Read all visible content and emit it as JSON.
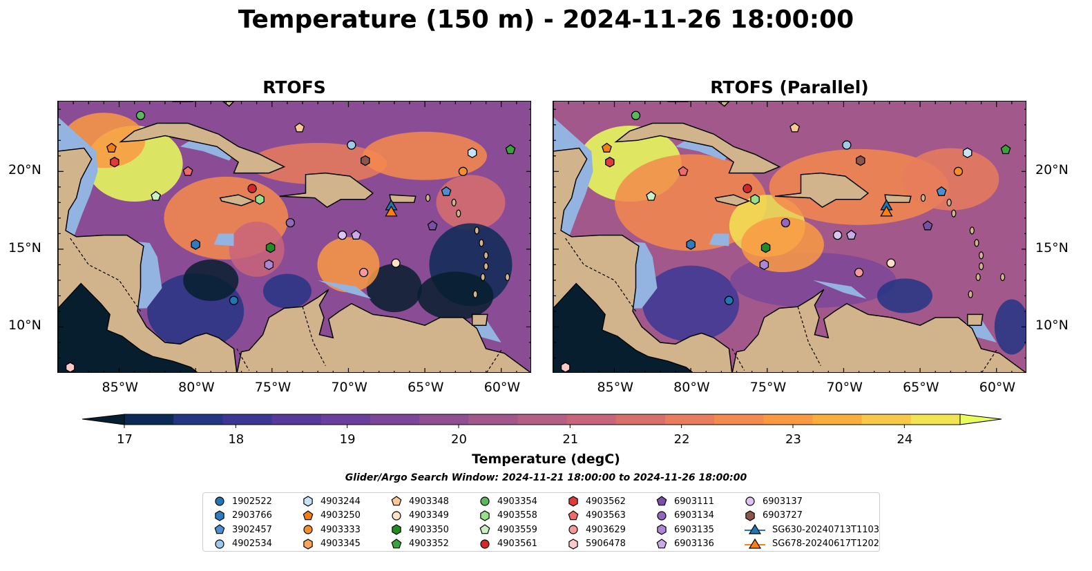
{
  "figure": {
    "title": "Temperature (150 m) - 2024-11-26 18:00:00"
  },
  "panels": [
    {
      "title": "RTOFS"
    },
    {
      "title": "RTOFS (Parallel)"
    }
  ],
  "map": {
    "lon_ticks": [
      "85°W",
      "80°W",
      "75°W",
      "70°W",
      "65°W",
      "60°W"
    ],
    "lat_ticks": [
      "20°N",
      "15°N",
      "10°N"
    ],
    "lon_range": [
      -89,
      -58
    ],
    "lat_range": [
      7,
      24.5
    ]
  },
  "colorbar": {
    "label": "Temperature (degC)",
    "ticks": [
      "17",
      "18",
      "19",
      "20",
      "21",
      "22",
      "23",
      "24"
    ],
    "range": [
      17,
      24.5
    ],
    "extend": "both",
    "colors": [
      "#071e2e",
      "#0c2a56",
      "#243584",
      "#3c3795",
      "#55399b",
      "#6a3f9d",
      "#7d4799",
      "#904f93",
      "#a3588b",
      "#b65f84",
      "#c8657a",
      "#d86f6c",
      "#e87c5c",
      "#f48a4c",
      "#f99a43",
      "#fbae3e",
      "#f8c947",
      "#f2e352",
      "#eaff5b"
    ]
  },
  "search_window": "Glider/Argo Search Window: 2024-11-21 18:00:00 to 2024-11-26 18:00:00",
  "legend": [
    {
      "label": "1902522",
      "shape": "circle",
      "color": "#1f77b4"
    },
    {
      "label": "2903766",
      "shape": "hexagon",
      "color": "#2e7cbf"
    },
    {
      "label": "3902457",
      "shape": "pentagon",
      "color": "#4a90d0"
    },
    {
      "label": "4902534",
      "shape": "circle",
      "color": "#9ecae9"
    },
    {
      "label": "4903244",
      "shape": "hexagon",
      "color": "#c6e4f7"
    },
    {
      "label": "4903250",
      "shape": "pentagon",
      "color": "#f07f0e"
    },
    {
      "label": "4903333",
      "shape": "circle",
      "color": "#f58f2a"
    },
    {
      "label": "4903345",
      "shape": "hexagon",
      "color": "#f7a55c"
    },
    {
      "label": "4903348",
      "shape": "pentagon",
      "color": "#fbc996"
    },
    {
      "label": "4903349",
      "shape": "circle",
      "color": "#fde0c5"
    },
    {
      "label": "4903350",
      "shape": "hexagon",
      "color": "#228b22"
    },
    {
      "label": "4903352",
      "shape": "pentagon",
      "color": "#3aa23a"
    },
    {
      "label": "4903354",
      "shape": "circle",
      "color": "#5cb85c"
    },
    {
      "label": "4903558",
      "shape": "hexagon",
      "color": "#98df8a"
    },
    {
      "label": "4903559",
      "shape": "pentagon",
      "color": "#c8f0c0"
    },
    {
      "label": "4903561",
      "shape": "circle",
      "color": "#d62728"
    },
    {
      "label": "4903562",
      "shape": "hexagon",
      "color": "#e03a3a"
    },
    {
      "label": "4903563",
      "shape": "pentagon",
      "color": "#ef6b6b"
    },
    {
      "label": "4903629",
      "shape": "circle",
      "color": "#f59a9a"
    },
    {
      "label": "5906478",
      "shape": "hexagon",
      "color": "#fbc9c9"
    },
    {
      "label": "6903111",
      "shape": "pentagon",
      "color": "#7b4ea8"
    },
    {
      "label": "6903134",
      "shape": "circle",
      "color": "#9467bd"
    },
    {
      "label": "6903135",
      "shape": "hexagon",
      "color": "#ad86d6"
    },
    {
      "label": "6903136",
      "shape": "pentagon",
      "color": "#c9abe8"
    },
    {
      "label": "6903137",
      "shape": "circle",
      "color": "#dcc4f5"
    },
    {
      "label": "6903727",
      "shape": "hexagon",
      "color": "#8c564b"
    },
    {
      "label": "SG630-20240713T1103",
      "shape": "triangle-line",
      "color": "#1f77b4"
    },
    {
      "label": "SG678-20240617T1202",
      "shape": "triangle-line",
      "color": "#ff7f0e"
    }
  ],
  "markers": [
    {
      "id": "4903354",
      "lon": -83.6,
      "lat": 23.6,
      "shape": "circle",
      "color": "#5cb85c"
    },
    {
      "id": "4903250",
      "lon": -85.5,
      "lat": 21.5,
      "shape": "pentagon",
      "color": "#f07f0e"
    },
    {
      "id": "4903562",
      "lon": -85.3,
      "lat": 20.6,
      "shape": "hexagon",
      "color": "#e03a3a"
    },
    {
      "id": "4903563",
      "lon": -80.5,
      "lat": 20.0,
      "shape": "pentagon",
      "color": "#ef6b6b"
    },
    {
      "id": "4903559",
      "lon": -82.6,
      "lat": 18.4,
      "shape": "pentagon",
      "color": "#c8f0c0"
    },
    {
      "id": "4903348",
      "lon": -73.2,
      "lat": 22.8,
      "shape": "pentagon",
      "color": "#fbc996"
    },
    {
      "id": "4902534",
      "lon": -69.8,
      "lat": 21.7,
      "shape": "circle",
      "color": "#9ecae9"
    },
    {
      "id": "6903727",
      "lon": -68.9,
      "lat": 20.7,
      "shape": "hexagon",
      "color": "#8c564b"
    },
    {
      "id": "4903244",
      "lon": -61.9,
      "lat": 21.2,
      "shape": "hexagon",
      "color": "#c6e4f7"
    },
    {
      "id": "4903352",
      "lon": -59.4,
      "lat": 21.4,
      "shape": "pentagon",
      "color": "#3aa23a"
    },
    {
      "id": "4903333",
      "lon": -62.5,
      "lat": 20.0,
      "shape": "circle",
      "color": "#f58f2a"
    },
    {
      "id": "4903561",
      "lon": -76.3,
      "lat": 18.9,
      "shape": "circle",
      "color": "#d62728"
    },
    {
      "id": "4903558",
      "lon": -75.8,
      "lat": 18.2,
      "shape": "hexagon",
      "color": "#98df8a"
    },
    {
      "id": "3902457",
      "lon": -63.6,
      "lat": 18.7,
      "shape": "pentagon",
      "color": "#4a90d0"
    },
    {
      "id": "6903134",
      "lon": -73.8,
      "lat": 16.7,
      "shape": "circle",
      "color": "#9467bd"
    },
    {
      "id": "6903111",
      "lon": -64.5,
      "lat": 16.5,
      "shape": "pentagon",
      "color": "#7b4ea8"
    },
    {
      "id": "6903137",
      "lon": -70.4,
      "lat": 15.9,
      "shape": "circle",
      "color": "#dcc4f5"
    },
    {
      "id": "6903136",
      "lon": -69.5,
      "lat": 15.9,
      "shape": "pentagon",
      "color": "#c9abe8"
    },
    {
      "id": "2903766",
      "lon": -80.0,
      "lat": 15.3,
      "shape": "hexagon",
      "color": "#2e7cbf"
    },
    {
      "id": "4903350",
      "lon": -75.1,
      "lat": 15.1,
      "shape": "hexagon",
      "color": "#228b22"
    },
    {
      "id": "6903135",
      "lon": -75.2,
      "lat": 14.0,
      "shape": "hexagon",
      "color": "#ad86d6"
    },
    {
      "id": "4903629",
      "lon": -69.0,
      "lat": 13.5,
      "shape": "circle",
      "color": "#f59a9a"
    },
    {
      "id": "4903349",
      "lon": -66.9,
      "lat": 14.1,
      "shape": "circle",
      "color": "#fde0c5"
    },
    {
      "id": "1902522",
      "lon": -77.5,
      "lat": 11.7,
      "shape": "circle",
      "color": "#1f77b4"
    },
    {
      "id": "5906478",
      "lon": -88.2,
      "lat": 7.4,
      "shape": "hexagon",
      "color": "#fbc9c9"
    },
    {
      "id": "SG630-20240713T1103",
      "lon": -67.2,
      "lat": 17.8,
      "shape": "triangle",
      "color": "#1f77b4"
    },
    {
      "id": "SG678-20240617T1202",
      "lon": -67.2,
      "lat": 17.4,
      "shape": "triangle",
      "color": "#ff7f0e"
    }
  ]
}
